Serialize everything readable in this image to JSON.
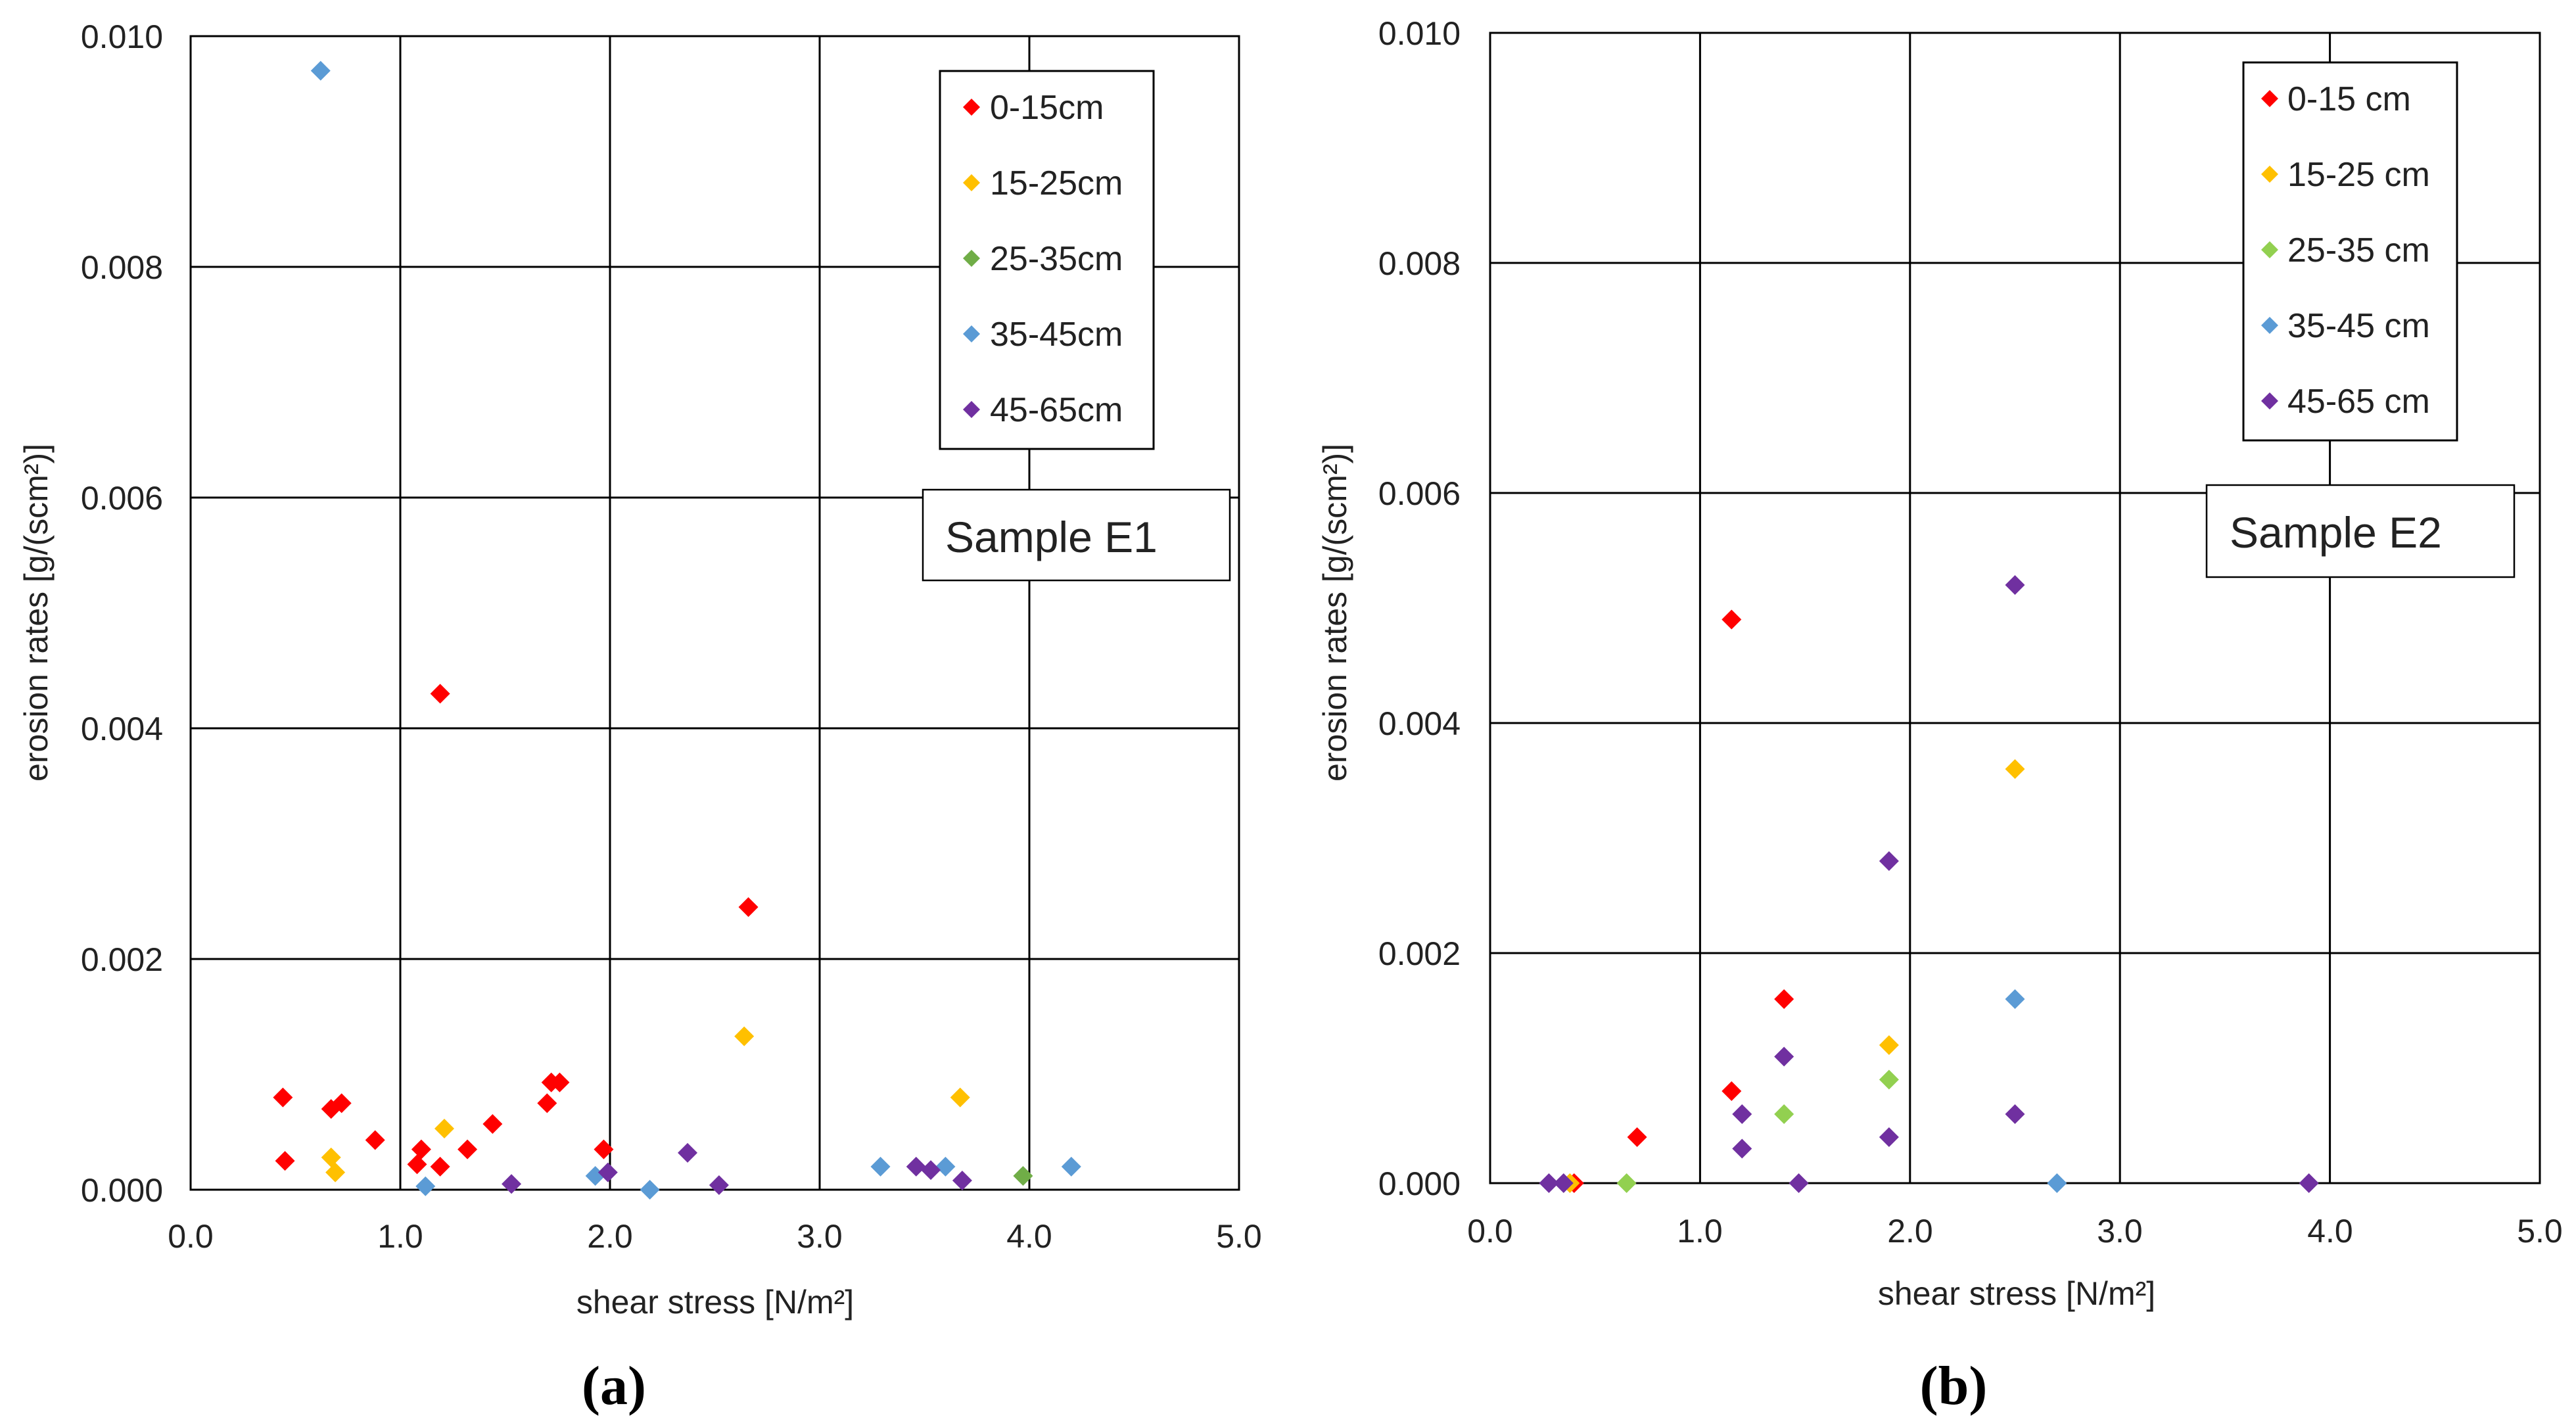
{
  "chart_data": [
    {
      "type": "scatter",
      "panel_label_open": "(",
      "panel_label_letter": "a",
      "panel_label_close": ")",
      "sample_label": "Sample E1",
      "xlabel": "shear stress [N/m²]",
      "ylabel": "erosion rates [g/(scm²)]",
      "xlim": [
        0,
        5
      ],
      "ylim": [
        0,
        0.01
      ],
      "xticks": [
        "0.0",
        "1.0",
        "2.0",
        "3.0",
        "4.0",
        "5.0"
      ],
      "yticks": [
        "0.000",
        "0.002",
        "0.004",
        "0.006",
        "0.008",
        "0.010"
      ],
      "xtick_values": [
        0,
        1,
        2,
        3,
        4,
        5
      ],
      "ytick_values": [
        0,
        0.002,
        0.004,
        0.006,
        0.008,
        0.01
      ],
      "grid": true,
      "legend_position": "top-right",
      "series": [
        {
          "name": "0-15cm",
          "color": "#ff0000",
          "points": [
            [
              0.44,
              0.0008
            ],
            [
              0.45,
              0.00025
            ],
            [
              0.67,
              0.0007
            ],
            [
              0.72,
              0.00075
            ],
            [
              0.88,
              0.00043
            ],
            [
              1.08,
              0.00022
            ],
            [
              1.1,
              0.00035
            ],
            [
              1.19,
              0.0043
            ],
            [
              1.19,
              0.0002
            ],
            [
              1.32,
              0.00035
            ],
            [
              1.44,
              0.00057
            ],
            [
              1.7,
              0.00075
            ],
            [
              1.72,
              0.00093
            ],
            [
              1.76,
              0.00093
            ],
            [
              1.97,
              0.00035
            ],
            [
              2.66,
              0.00245
            ]
          ]
        },
        {
          "name": "15-25cm",
          "color": "#ffc000",
          "points": [
            [
              0.67,
              0.00028
            ],
            [
              0.69,
              0.00015
            ],
            [
              1.21,
              0.00053
            ],
            [
              2.64,
              0.00133
            ],
            [
              3.67,
              0.0008
            ]
          ]
        },
        {
          "name": "25-35cm",
          "color": "#70ad47",
          "points": [
            [
              3.97,
              0.00012
            ]
          ]
        },
        {
          "name": "35-45cm",
          "color": "#5b9bd5",
          "points": [
            [
              0.62,
              0.0097
            ],
            [
              1.12,
              3e-05
            ],
            [
              1.93,
              0.00012
            ],
            [
              2.19,
              0.0
            ],
            [
              3.29,
              0.0002
            ],
            [
              3.6,
              0.0002
            ],
            [
              4.2,
              0.0002
            ]
          ]
        },
        {
          "name": "45-65cm",
          "color": "#7030a0",
          "points": [
            [
              1.53,
              5e-05
            ],
            [
              1.99,
              0.00015
            ],
            [
              2.37,
              0.00032
            ],
            [
              2.52,
              4e-05
            ],
            [
              3.46,
              0.0002
            ],
            [
              3.53,
              0.00017
            ],
            [
              3.68,
              8e-05
            ]
          ]
        }
      ]
    },
    {
      "type": "scatter",
      "panel_label_open": "(",
      "panel_label_letter": "b",
      "panel_label_close": ")",
      "sample_label": "Sample E2",
      "xlabel": "shear stress [N/m²]",
      "ylabel": "erosion rates [g/(scm²)]",
      "xlim": [
        0,
        5
      ],
      "ylim": [
        0,
        0.01
      ],
      "xticks": [
        "0.0",
        "1.0",
        "2.0",
        "3.0",
        "4.0",
        "5.0"
      ],
      "yticks": [
        "0.000",
        "0.002",
        "0.004",
        "0.006",
        "0.008",
        "0.010"
      ],
      "xtick_values": [
        0,
        1,
        2,
        3,
        4,
        5
      ],
      "ytick_values": [
        0,
        0.002,
        0.004,
        0.006,
        0.008,
        0.01
      ],
      "grid": true,
      "legend_position": "top-right",
      "series": [
        {
          "name": "0-15 cm",
          "color": "#ff0000",
          "points": [
            [
              0.4,
              0.0
            ],
            [
              0.7,
              0.0004
            ],
            [
              1.15,
              0.0049
            ],
            [
              1.15,
              0.0008
            ],
            [
              1.4,
              0.0016
            ]
          ]
        },
        {
          "name": "15-25 cm",
          "color": "#ffc000",
          "points": [
            [
              0.38,
              0.0
            ],
            [
              1.9,
              0.0012
            ],
            [
              2.5,
              0.0036
            ]
          ]
        },
        {
          "name": "25-35 cm",
          "color": "#92d050",
          "points": [
            [
              0.65,
              0.0
            ],
            [
              1.4,
              0.0006
            ],
            [
              1.9,
              0.0009
            ]
          ]
        },
        {
          "name": "35-45 cm",
          "color": "#5b9bd5",
          "points": [
            [
              2.5,
              0.0016
            ],
            [
              2.7,
              0.0
            ]
          ]
        },
        {
          "name": "45-65 cm",
          "color": "#7030a0",
          "points": [
            [
              0.28,
              0.0
            ],
            [
              0.35,
              0.0
            ],
            [
              1.2,
              0.0006
            ],
            [
              1.2,
              0.0003
            ],
            [
              1.4,
              0.0011
            ],
            [
              1.47,
              0.0
            ],
            [
              1.9,
              0.0028
            ],
            [
              1.9,
              0.0004
            ],
            [
              2.5,
              0.0052
            ],
            [
              2.5,
              0.0006
            ],
            [
              3.9,
              0.0
            ]
          ]
        }
      ]
    }
  ]
}
